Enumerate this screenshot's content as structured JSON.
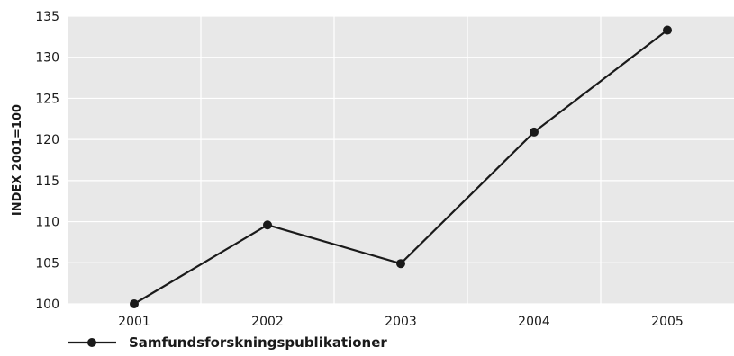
{
  "chart_data": {
    "type": "line",
    "categories": [
      "2001",
      "2002",
      "2003",
      "2004",
      "2005"
    ],
    "series": [
      {
        "name": "Samfundsforskningspublikationer",
        "values": [
          100,
          109.6,
          104.9,
          120.9,
          133.3
        ]
      }
    ],
    "xlabel": "",
    "ylabel": "INDEX 2001=100",
    "ylim": [
      100,
      135
    ],
    "yticks": [
      "100",
      "105",
      "110",
      "115",
      "120",
      "125",
      "130",
      "135"
    ],
    "grid": true,
    "legend": "bottom-left",
    "colors": {
      "background": "#e8e8e8",
      "grid": "#ffffff",
      "line": "#1a1a1a",
      "marker": "#1a1a1a"
    }
  }
}
